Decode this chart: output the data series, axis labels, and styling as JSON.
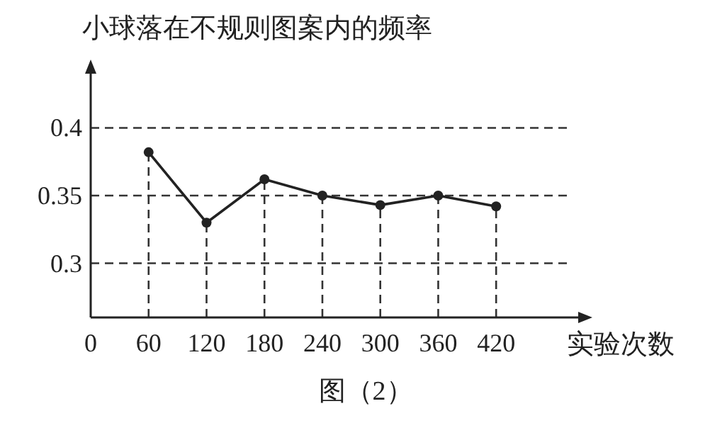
{
  "chart_data": {
    "type": "line",
    "ylabel": "小球落在不规则图案内的频率",
    "xlabel": "实验次数",
    "annotations": [
      "图（2）"
    ],
    "x": [
      60,
      120,
      180,
      240,
      300,
      360,
      420
    ],
    "series": [
      {
        "color": "#222222",
        "values": [
          0.382,
          0.33,
          0.362,
          0.35,
          0.343,
          0.35,
          0.342
        ]
      }
    ],
    "xlim": [
      0,
      505
    ],
    "xticks": [
      0,
      60,
      120,
      180,
      240,
      300,
      360,
      420
    ],
    "ylim": [
      0.26,
      0.44
    ],
    "yticks": [
      0.3,
      0.35,
      0.4
    ],
    "grid": "y",
    "ref_lines": [
      {
        "axis": "x",
        "value": 60,
        "line_style": "dashed"
      },
      {
        "axis": "x",
        "value": 120,
        "line_style": "dashed"
      },
      {
        "axis": "x",
        "value": 180,
        "line_style": "dashed"
      },
      {
        "axis": "x",
        "value": 240,
        "line_style": "dashed"
      },
      {
        "axis": "x",
        "value": 300,
        "line_style": "dashed"
      },
      {
        "axis": "x",
        "value": 360,
        "line_style": "dashed"
      },
      {
        "axis": "x",
        "value": 420,
        "line_style": "dashed"
      }
    ],
    "marker": "circle",
    "line_style": "solid"
  }
}
